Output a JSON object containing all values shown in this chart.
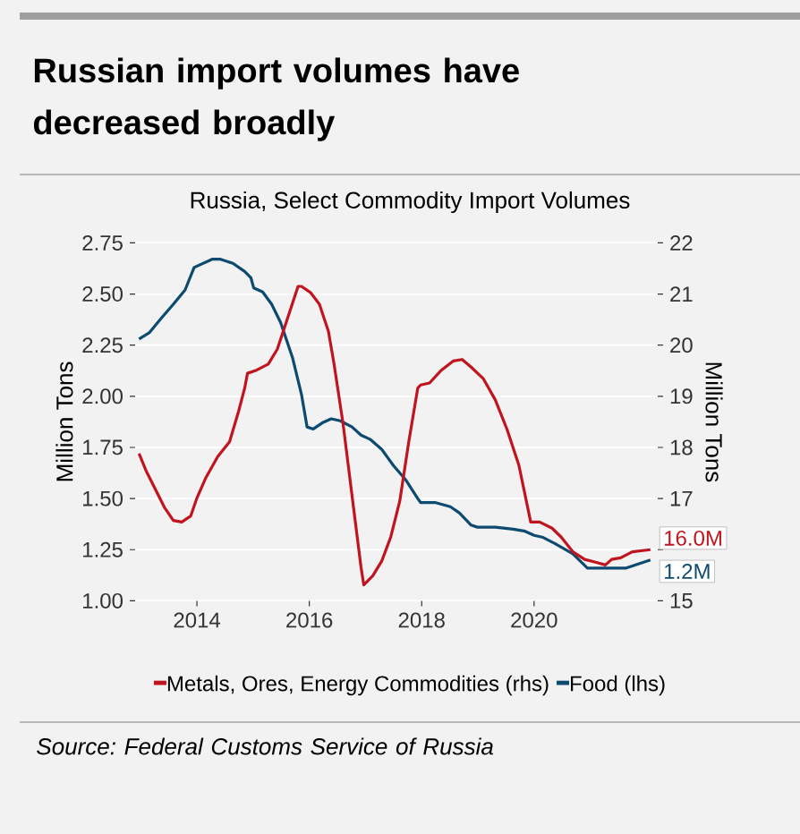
{
  "chart_data": {
    "type": "line",
    "title": "Russian import volumes have decreased broadly",
    "subtitle": "Russia, Select Commodity Import Volumes",
    "ylabel": "Million Tons",
    "y2label": "Million Tons",
    "xlim": [
      2012.9,
      2022.2
    ],
    "xticks": [
      2014,
      2016,
      2018,
      2020
    ],
    "ylim": [
      1.0,
      2.75
    ],
    "yticks": [
      {
        "value": 1.0,
        "label": "1.00"
      },
      {
        "value": 1.25,
        "label": "1.25"
      },
      {
        "value": 1.5,
        "label": "1.50"
      },
      {
        "value": 1.75,
        "label": "1.75"
      },
      {
        "value": 2.0,
        "label": "2.00"
      },
      {
        "value": 2.25,
        "label": "2.25"
      },
      {
        "value": 2.5,
        "label": "2.50"
      },
      {
        "value": 2.75,
        "label": "2.75"
      }
    ],
    "y2lim": [
      15,
      22
    ],
    "y2ticks": [
      15,
      {
        "value": 16,
        "label": null
      },
      17,
      18,
      19,
      20,
      21,
      22
    ],
    "grid": "y",
    "legend": "bottom",
    "annotations": [
      "Source: Federal Customs Service of Russia"
    ],
    "series": [
      {
        "name": "Metals, Ores, Energy Commodities (rhs)",
        "color": "#c0141e",
        "axis": "y2",
        "x": [
          2012.97,
          2013.1,
          2013.26,
          2013.42,
          2013.58,
          2013.73,
          2013.89,
          2014.0,
          2014.16,
          2014.37,
          2014.58,
          2014.74,
          2014.85,
          2014.9,
          2015.06,
          2015.27,
          2015.43,
          2015.59,
          2015.8,
          2015.86,
          2016.02,
          2016.18,
          2016.34,
          2016.44,
          2016.6,
          2016.76,
          2016.92,
          2016.97,
          2017.13,
          2017.29,
          2017.45,
          2017.61,
          2017.77,
          2017.93,
          2017.98,
          2018.14,
          2018.35,
          2018.56,
          2018.72,
          2018.88,
          2019.1,
          2019.31,
          2019.52,
          2019.73,
          2019.94,
          2020.1,
          2020.32,
          2020.48,
          2020.69,
          2020.9,
          2021.11,
          2021.27,
          2021.38,
          2021.54,
          2021.75,
          2022.07
        ],
        "values": [
          17.88,
          17.53,
          17.18,
          16.83,
          16.57,
          16.54,
          16.66,
          17.01,
          17.41,
          17.82,
          18.11,
          18.7,
          19.16,
          19.45,
          19.51,
          19.63,
          19.92,
          20.45,
          21.15,
          21.15,
          21.03,
          20.8,
          20.27,
          19.63,
          18.47,
          17.06,
          15.66,
          15.31,
          15.49,
          15.78,
          16.25,
          16.95,
          18.11,
          19.16,
          19.22,
          19.26,
          19.51,
          19.69,
          19.72,
          19.57,
          19.34,
          18.93,
          18.35,
          17.65,
          16.54,
          16.54,
          16.42,
          16.25,
          15.96,
          15.81,
          15.75,
          15.7,
          15.81,
          15.84,
          15.96,
          16.0
        ],
        "value_labels": [
          null,
          null,
          null,
          null,
          null,
          null,
          null,
          null,
          null,
          null,
          null,
          null,
          null,
          null,
          null,
          null,
          null,
          null,
          null,
          null,
          null,
          null,
          null,
          null,
          null,
          null,
          null,
          null,
          null,
          null,
          null,
          null,
          null,
          null,
          null,
          null,
          null,
          null,
          null,
          null,
          null,
          null,
          null,
          null,
          null,
          null,
          null,
          null,
          null,
          null,
          null,
          null,
          null,
          null,
          null,
          "16.0M"
        ]
      },
      {
        "name": "Food (lhs)",
        "color": "#0d4a70",
        "axis": "y",
        "x": [
          2012.97,
          2013.15,
          2013.36,
          2013.58,
          2013.79,
          2013.95,
          2014.11,
          2014.27,
          2014.42,
          2014.64,
          2014.85,
          2014.96,
          2015.01,
          2015.17,
          2015.33,
          2015.49,
          2015.7,
          2015.86,
          2015.96,
          2016.07,
          2016.23,
          2016.39,
          2016.55,
          2016.76,
          2016.92,
          2017.08,
          2017.29,
          2017.5,
          2017.72,
          2017.93,
          2017.98,
          2018.25,
          2018.51,
          2018.67,
          2018.88,
          2018.99,
          2019.31,
          2019.63,
          2019.84,
          2020.0,
          2020.16,
          2020.37,
          2020.69,
          2020.95,
          2021.32,
          2021.64,
          2022.07
        ],
        "values": [
          2.28,
          2.31,
          2.38,
          2.45,
          2.52,
          2.63,
          2.65,
          2.67,
          2.67,
          2.65,
          2.61,
          2.58,
          2.53,
          2.51,
          2.45,
          2.36,
          2.19,
          2.01,
          1.85,
          1.84,
          1.87,
          1.89,
          1.88,
          1.85,
          1.81,
          1.79,
          1.74,
          1.66,
          1.59,
          1.5,
          1.48,
          1.48,
          1.46,
          1.43,
          1.37,
          1.36,
          1.36,
          1.35,
          1.34,
          1.32,
          1.31,
          1.28,
          1.23,
          1.16,
          1.16,
          1.16,
          1.2
        ],
        "value_labels": [
          null,
          null,
          null,
          null,
          null,
          null,
          null,
          null,
          null,
          null,
          null,
          null,
          null,
          null,
          null,
          null,
          null,
          null,
          null,
          null,
          null,
          null,
          null,
          null,
          null,
          null,
          null,
          null,
          null,
          null,
          null,
          null,
          null,
          null,
          null,
          null,
          null,
          null,
          null,
          null,
          null,
          null,
          null,
          null,
          null,
          null,
          "1.2M"
        ]
      }
    ]
  }
}
